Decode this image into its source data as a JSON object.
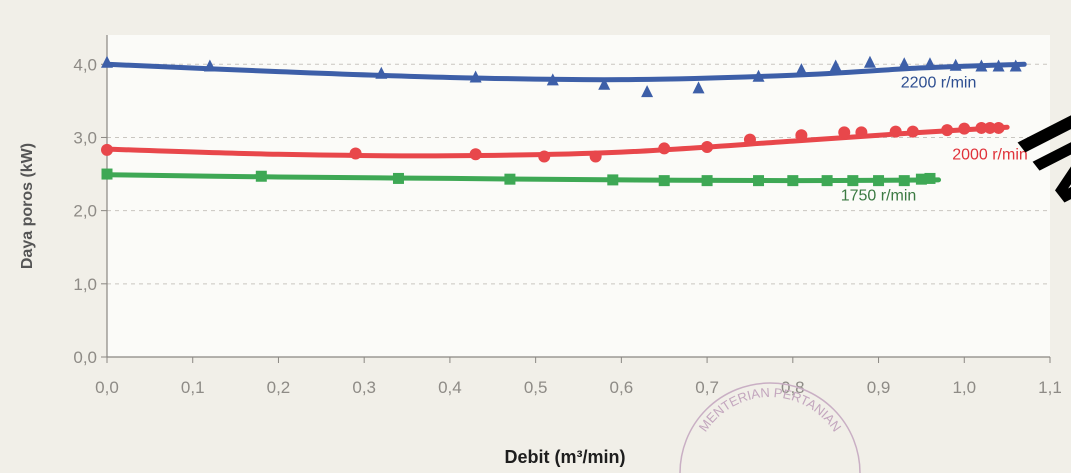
{
  "chart_data": {
    "type": "scatter",
    "xlabel": "Debit (m³/min)",
    "ylabel": "Daya poros (kW)",
    "xlim": [
      0,
      1.1
    ],
    "ylim": [
      0,
      4.4
    ],
    "xticks": [
      0.0,
      0.1,
      0.2,
      0.3,
      0.4,
      0.5,
      0.6,
      0.7,
      0.8,
      0.9,
      1.0,
      1.1
    ],
    "yticks": [
      0.0,
      1.0,
      2.0,
      3.0,
      4.0
    ],
    "xtick_labels": [
      "0,0",
      "0,1",
      "0,2",
      "0,3",
      "0,4",
      "0,5",
      "0,6",
      "0,7",
      "0,8",
      "0,9",
      "1,0",
      "1,1"
    ],
    "ytick_labels": [
      "0,0",
      "1,0",
      "2,0",
      "3,0",
      "4,0"
    ],
    "grid": "horizontal-dashed",
    "series": [
      {
        "name": "2200 r/min",
        "color": "#3d5fa8",
        "marker": "triangle",
        "x": [
          0.0,
          0.12,
          0.32,
          0.43,
          0.52,
          0.58,
          0.63,
          0.69,
          0.76,
          0.81,
          0.85,
          0.89,
          0.93,
          0.96,
          0.99,
          1.02,
          1.04,
          1.06
        ],
        "y": [
          4.02,
          3.97,
          3.87,
          3.82,
          3.78,
          3.72,
          3.62,
          3.67,
          3.83,
          3.92,
          3.97,
          4.02,
          4.0,
          4.0,
          3.98,
          3.97,
          3.97,
          3.97
        ],
        "fit": [
          [
            0.0,
            4.0
          ],
          [
            0.2,
            3.9
          ],
          [
            0.4,
            3.82
          ],
          [
            0.6,
            3.79
          ],
          [
            0.8,
            3.85
          ],
          [
            0.95,
            3.95
          ],
          [
            1.07,
            4.0
          ]
        ]
      },
      {
        "name": "2000 r/min",
        "color": "#e8474b",
        "marker": "circle",
        "x": [
          0.0,
          0.29,
          0.43,
          0.51,
          0.57,
          0.65,
          0.7,
          0.75,
          0.81,
          0.86,
          0.88,
          0.92,
          0.94,
          0.98,
          1.0,
          1.02,
          1.03,
          1.04
        ],
        "y": [
          2.83,
          2.78,
          2.77,
          2.74,
          2.74,
          2.85,
          2.87,
          2.97,
          3.03,
          3.07,
          3.07,
          3.08,
          3.08,
          3.1,
          3.12,
          3.13,
          3.13,
          3.13
        ],
        "fit": [
          [
            0.0,
            2.84
          ],
          [
            0.2,
            2.77
          ],
          [
            0.4,
            2.75
          ],
          [
            0.6,
            2.8
          ],
          [
            0.8,
            2.95
          ],
          [
            0.95,
            3.07
          ],
          [
            1.05,
            3.14
          ]
        ]
      },
      {
        "name": "1750 r/min",
        "color": "#3ea855",
        "marker": "square",
        "x": [
          0.0,
          0.18,
          0.34,
          0.47,
          0.59,
          0.65,
          0.7,
          0.76,
          0.8,
          0.84,
          0.87,
          0.9,
          0.93,
          0.95,
          0.96
        ],
        "y": [
          2.5,
          2.47,
          2.44,
          2.43,
          2.42,
          2.41,
          2.41,
          2.41,
          2.41,
          2.41,
          2.41,
          2.41,
          2.41,
          2.43,
          2.44
        ],
        "fit": [
          [
            0.0,
            2.49
          ],
          [
            0.2,
            2.46
          ],
          [
            0.4,
            2.44
          ],
          [
            0.6,
            2.42
          ],
          [
            0.8,
            2.41
          ],
          [
            0.97,
            2.42
          ]
        ]
      }
    ]
  },
  "stamp": {
    "text": "MENTERIAN PERTANIAN"
  },
  "watermark": {
    "text": "IN"
  }
}
